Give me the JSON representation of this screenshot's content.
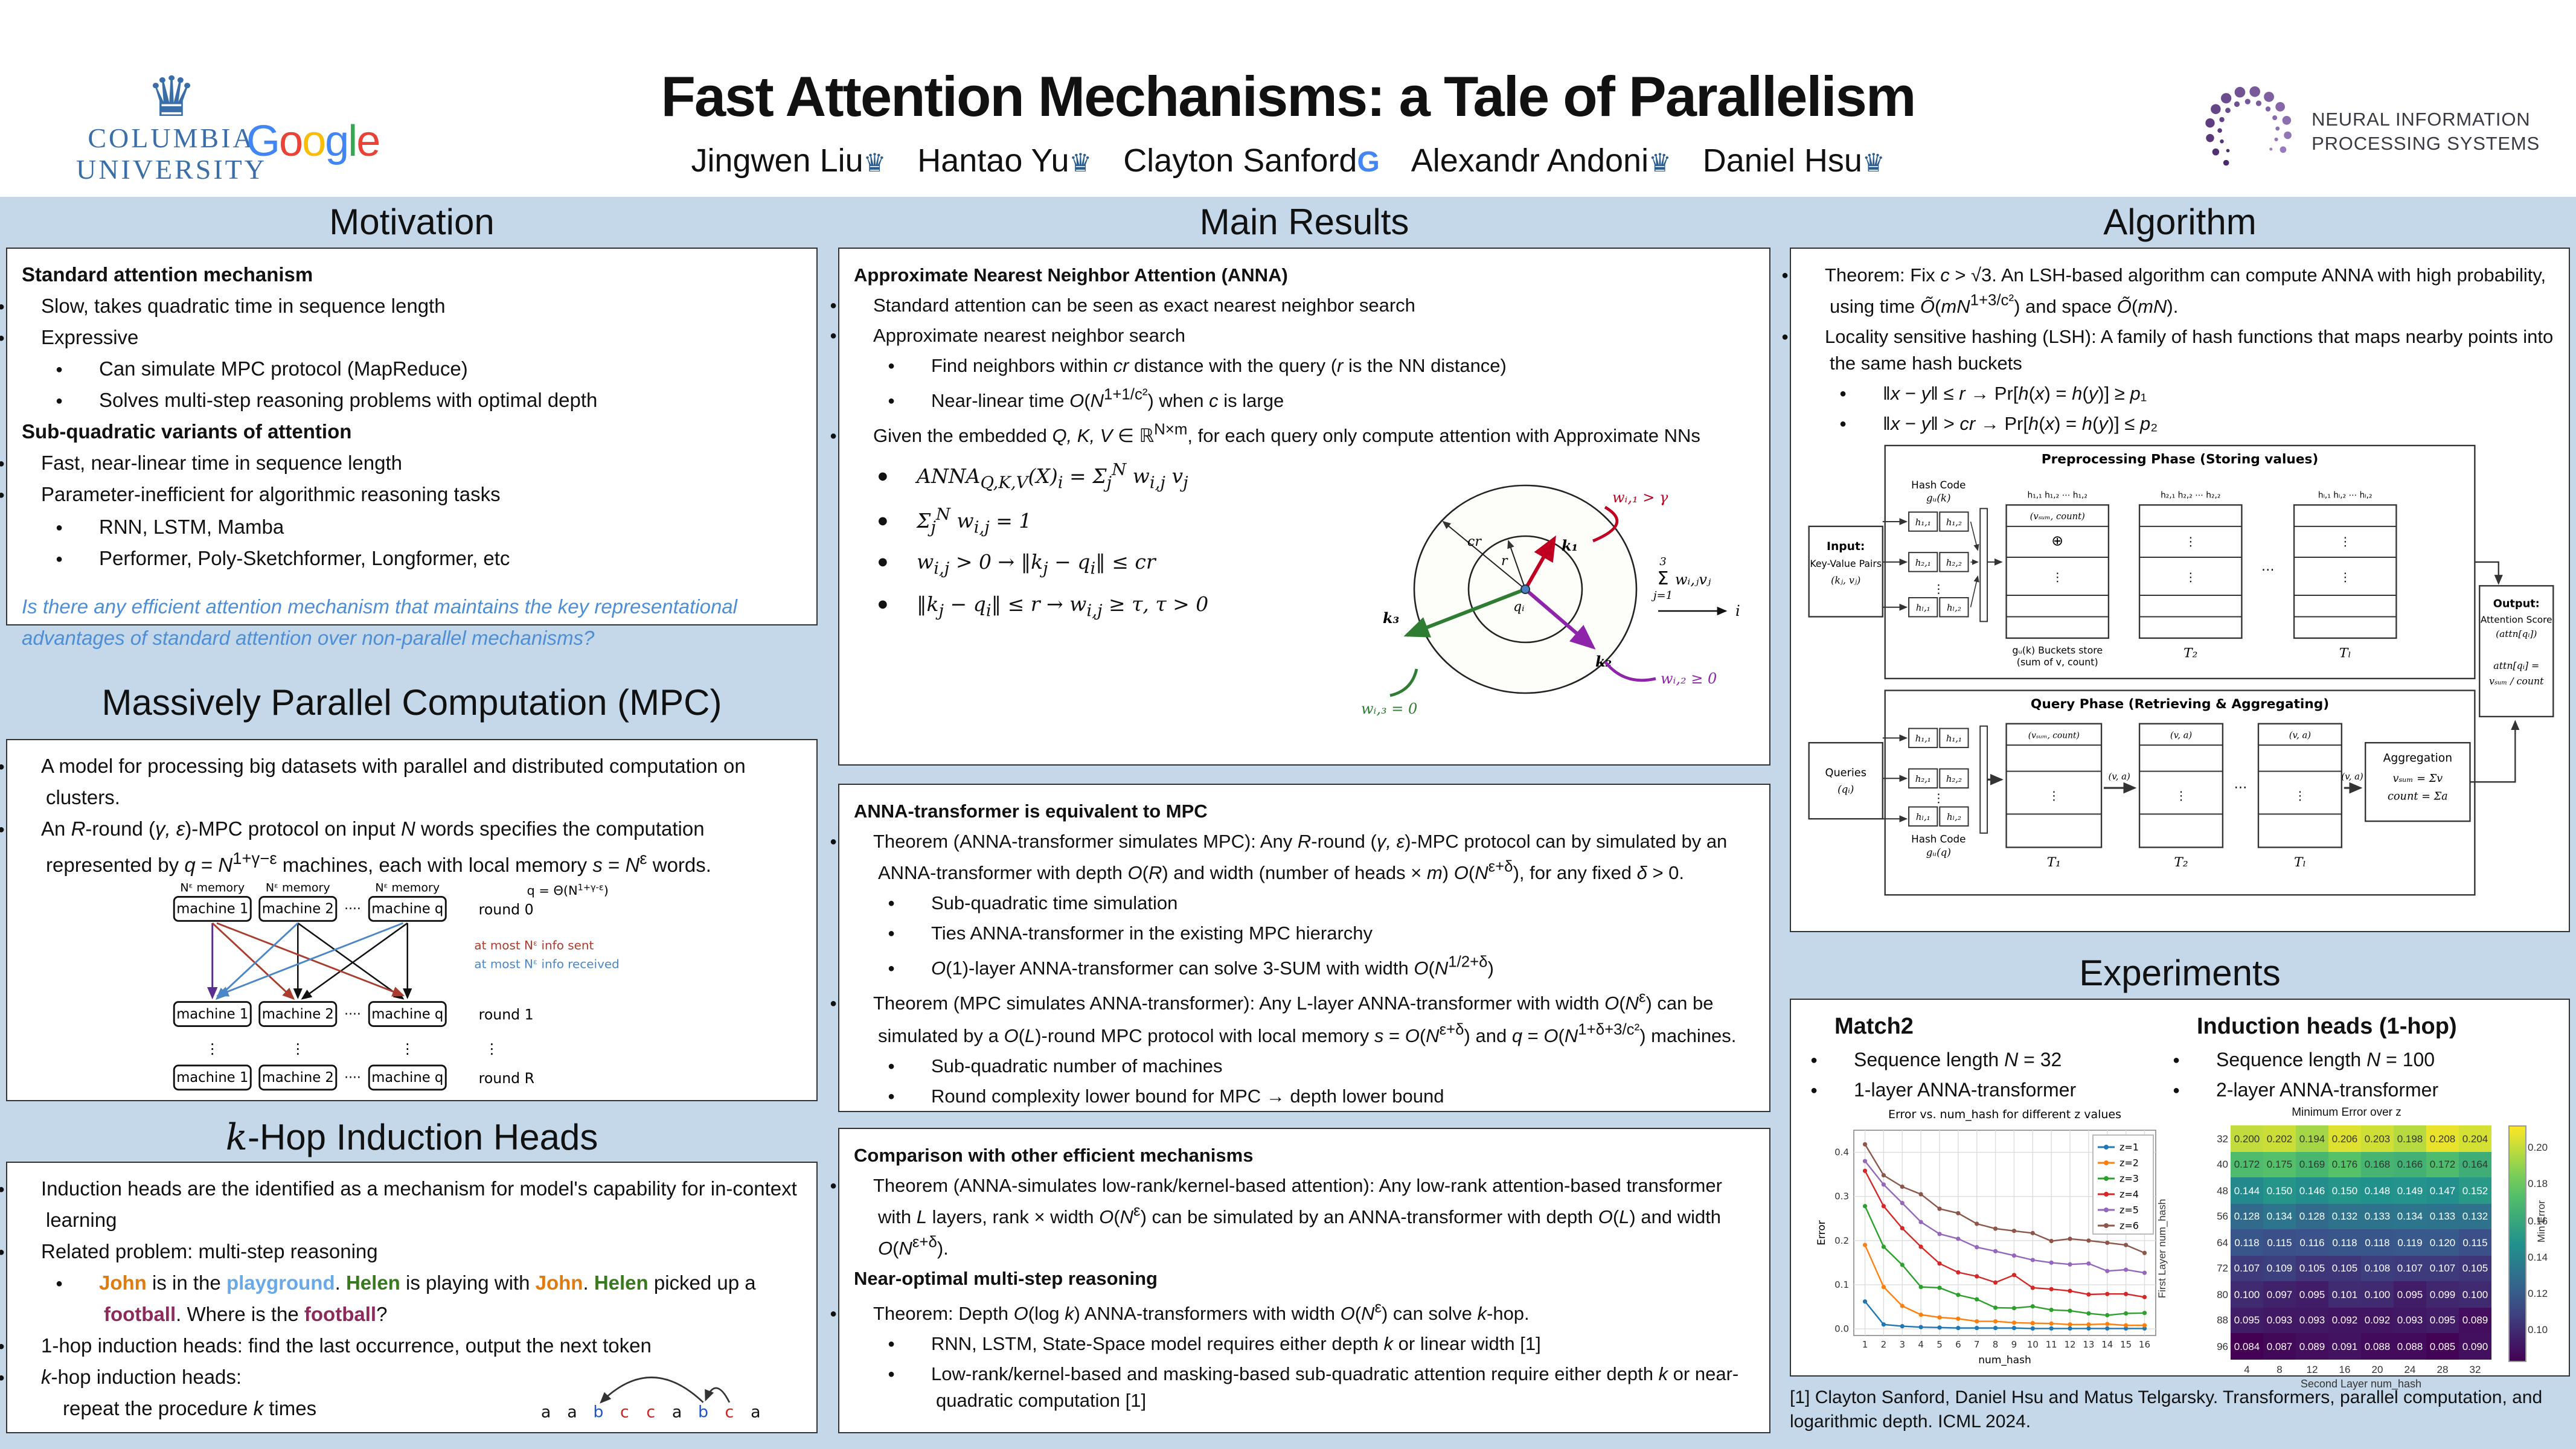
{
  "header": {
    "title": "Fast Attention Mechanisms: a Tale of Parallelism",
    "authors": [
      {
        "name": "Jingwen Liu",
        "affiliation": "columbia"
      },
      {
        "name": "Hantao Yu",
        "affiliation": "columbia"
      },
      {
        "name": "Clayton Sanford",
        "affiliation": "google"
      },
      {
        "name": "Alexandr Andoni",
        "affiliation": "columbia"
      },
      {
        "name": "Daniel Hsu",
        "affiliation": "columbia"
      }
    ],
    "columbia_logo": {
      "line1": "COLUMBIA",
      "line2": "UNIVERSITY"
    },
    "google_logo": {
      "letters": [
        "G",
        "o",
        "o",
        "g",
        "l",
        "e"
      ],
      "colors": [
        "#4285F4",
        "#EA4335",
        "#FBBC05",
        "#4285F4",
        "#34A853",
        "#EA4335"
      ]
    },
    "neurips_logo": {
      "line1": "NEURAL INFORMATION",
      "line2": "PROCESSING SYSTEMS"
    }
  },
  "motivation": {
    "title": "Motivation",
    "items": [
      {
        "k": "h",
        "t": "Standard attention mechanism"
      },
      {
        "k": "b1",
        "t": "Slow, takes quadratic time in sequence length"
      },
      {
        "k": "b1",
        "t": "Expressive"
      },
      {
        "k": "b2",
        "t": "Can simulate MPC protocol (MapReduce)"
      },
      {
        "k": "b2",
        "t": "Solves multi-step reasoning problems with optimal depth"
      },
      {
        "k": "h",
        "t": "Sub-quadratic variants of attention"
      },
      {
        "k": "b1",
        "t": "Fast, near-linear time in sequence length"
      },
      {
        "k": "b1",
        "t": "Parameter-inefficient for algorithmic reasoning tasks"
      },
      {
        "k": "b2",
        "t": "RNN, LSTM, Mamba"
      },
      {
        "k": "b2",
        "t": "Performer, Poly-Sketchformer, Longformer, etc"
      },
      {
        "k": "q",
        "t": "Is there any efficient attention mechanism that maintains the key representational advantages of standard attention over non-parallel mechanisms?"
      }
    ]
  },
  "mpc": {
    "title": "Massively Parallel Computation (MPC)",
    "items": [
      {
        "k": "b1",
        "t": "A model for processing big datasets with parallel and distributed computation on clusters."
      },
      {
        "k": "b1",
        "html": true,
        "t": "An <i>R</i>-round (<i>γ, ε</i>)-MPC protocol on input <i>N</i> words specifies the computation represented by <i>q</i> = <i>N</i><sup>1+γ−ε</sup> machines, each with local memory <i>s</i> = <i>N</i><sup>ε</sup> words."
      }
    ],
    "diagram": {
      "memory_label": "Nᵋ memory",
      "q_base": "q = Θ(N",
      "q_sup": "1+γ-ε",
      "q_close": ")",
      "machines": [
        "machine 1",
        "machine 2",
        "machine q"
      ],
      "rounds": [
        "round 0",
        "round 1",
        "round R"
      ],
      "dots": "····",
      "sent_note": "at most Nᵋ info sent",
      "received_note": "at most Nᵋ info received",
      "sent_color": "#a93c2e",
      "received_color": "#4a86c8"
    }
  },
  "khop": {
    "title": "k-Hop Induction Heads",
    "items": [
      {
        "k": "b1",
        "t": "Induction heads are the identified as a mechanism for model's capability for in-context learning"
      },
      {
        "k": "b1",
        "t": "Related problem: multi-step reasoning"
      },
      {
        "k": "b2",
        "segs": [
          {
            "t": "John",
            "c": "#e07b10"
          },
          {
            "t": " is in the ",
            "c": ""
          },
          {
            "t": "playground",
            "c": "#6aa9e8"
          },
          {
            "t": ". ",
            "c": ""
          },
          {
            "t": "Helen",
            "c": "#3a7a1e"
          },
          {
            "t": " is playing with ",
            "c": ""
          },
          {
            "t": "John",
            "c": "#e07b10"
          },
          {
            "t": ". ",
            "c": ""
          },
          {
            "t": "Helen",
            "c": "#3a7a1e"
          },
          {
            "t": " picked up a ",
            "c": ""
          },
          {
            "t": "football",
            "c": "#8c2a5a"
          },
          {
            "t": ". Where is the ",
            "c": ""
          },
          {
            "t": "football",
            "c": "#8c2a5a"
          },
          {
            "t": "?",
            "c": ""
          }
        ]
      },
      {
        "k": "b1",
        "t": "1-hop induction heads: find the last occurrence, output the next token"
      },
      {
        "k": "b1",
        "html": true,
        "t": "<i>k</i>-hop induction heads:"
      },
      {
        "k": "p",
        "html": true,
        "t": "repeat the procedure <i>k</i> times"
      }
    ],
    "sequence": [
      {
        "t": "a",
        "c": "#111111"
      },
      {
        "t": "a",
        "c": "#111111"
      },
      {
        "t": "b",
        "c": "#2255cc"
      },
      {
        "t": "c",
        "c": "#cc2222"
      },
      {
        "t": "c",
        "c": "#cc2222"
      },
      {
        "t": "a",
        "c": "#111111"
      },
      {
        "t": "b",
        "c": "#2255cc"
      },
      {
        "t": "c",
        "c": "#cc2222"
      },
      {
        "t": "a",
        "c": "#111111"
      }
    ]
  },
  "main_results": {
    "title": "Main Results",
    "anna_items": [
      {
        "k": "h",
        "t": "Approximate Nearest Neighbor Attention (ANNA)"
      },
      {
        "k": "b1",
        "t": "Standard attention can be seen as exact nearest neighbor search"
      },
      {
        "k": "b1",
        "t": "Approximate nearest neighbor search"
      },
      {
        "k": "b2",
        "html": true,
        "t": "Find neighbors within <i>cr</i> distance with the query (<i>r</i> is the NN distance)"
      },
      {
        "k": "b2",
        "html": true,
        "t": "Near-linear time <i>O</i>(<i>N</i><sup>1+1/c²</sup>) when <i>c</i> is large"
      },
      {
        "k": "b1",
        "html": true,
        "t": "Given the embedded <i>Q, K, V</i> ∈ ℝ<sup>N×m</sup>, for each query only compute attention with Approximate NNs"
      }
    ],
    "formulas": [
      "ANNA<sub>Q,K,V</sub>(X)<sub>i</sub> = Σ<sub>j</sub><sup>N</sup> w<sub>i,j</sub> v<sub>j</sub>",
      "Σ<sub>j</sub><sup>N</sup> w<sub>i,j</sub> = 1",
      "w<sub>i,j</sub> &gt; 0 → ‖k<sub>j</sub> − q<sub>i</sub>‖ ≤ cr",
      "‖k<sub>j</sub> − q<sub>i</sub>‖ ≤ r → w<sub>i,j</sub> ≥ τ, τ &gt; 0"
    ],
    "nn_diagram": {
      "w1": "wᵢ,₁ > γ",
      "w2": "wᵢ,₂ ≥ 0",
      "w3": "wᵢ,₃ = 0",
      "k1": "k₁",
      "k2": "k₂",
      "k3": "k₃",
      "q": "qᵢ",
      "r": "r",
      "cr": "cr",
      "sum_top": "3",
      "sum_sigma": "Σ",
      "sum_bottom": "j=1",
      "sum_body": "wᵢ,ⱼvⱼ",
      "i": "i",
      "w1_color": "#c00020",
      "w2_color": "#8e24aa",
      "w3_color": "#2e7d32"
    },
    "equiv_items": [
      {
        "k": "h",
        "t": "ANNA-transformer is equivalent to MPC"
      },
      {
        "k": "b1",
        "html": true,
        "t": "Theorem (ANNA-transformer simulates MPC): Any <i>R</i>-round (<i>γ, ε</i>)-MPC protocol can by simulated by an ANNA-transformer with depth <i>O</i>(<i>R</i>) and width (number of heads × <i>m</i>) <i>O</i>(<i>N</i><sup>ε+δ</sup>), for any fixed <i>δ</i> &gt; 0."
      },
      {
        "k": "b2",
        "t": "Sub-quadratic time simulation"
      },
      {
        "k": "b2",
        "t": "Ties ANNA-transformer in the existing MPC hierarchy"
      },
      {
        "k": "b2",
        "html": true,
        "t": "<i>O</i>(1)-layer ANNA-transformer can solve 3-SUM with width <i>O</i>(<i>N</i><sup>1/2+δ</sup>)"
      },
      {
        "k": "b1",
        "html": true,
        "t": "Theorem (MPC simulates ANNA-transformer): Any L-layer ANNA-transformer with width <i>O</i>(<i>N</i><sup>ε</sup>) can be simulated by a <i>O</i>(<i>L</i>)-round MPC protocol with local memory <i>s</i> = <i>O</i>(<i>N</i><sup>ε+δ</sup>) and <i>q</i> = <i>O</i>(<i>N</i><sup>1+δ+3/c²</sup>) machines."
      },
      {
        "k": "b2",
        "t": "Sub-quadratic number of machines"
      },
      {
        "k": "b2",
        "t": "Round complexity lower bound for MPC → depth lower bound"
      }
    ],
    "comparison_items": [
      {
        "k": "h",
        "t": "Comparison with other efficient mechanisms"
      },
      {
        "k": "b1",
        "html": true,
        "t": "Theorem (ANNA-simulates low-rank/kernel-based attention): Any low-rank attention-based transformer with <i>L</i> layers, rank × width <i>O</i>(<i>N</i><sup>ε</sup>) can be simulated by an ANNA-transformer with depth <i>O</i>(<i>L</i>) and width <i>O</i>(<i>N</i><sup>ε+δ</sup>)."
      },
      {
        "k": "h2",
        "t": "Near-optimal multi-step reasoning"
      },
      {
        "k": "b1",
        "html": true,
        "t": "Theorem: Depth <i>O</i>(log <i>k</i>) ANNA-transformers with width <i>O</i>(<i>N</i><sup>ε</sup>) can solve <i>k</i>-hop."
      },
      {
        "k": "b2",
        "html": true,
        "t": "RNN, LSTM, State-Space model requires either depth <i>k</i> or linear width [1]"
      },
      {
        "k": "b2",
        "html": true,
        "t": "Low-rank/kernel-based and masking-based sub-quadratic attention require either depth <i>k</i> or near-quadratic computation [1]"
      }
    ]
  },
  "algorithm": {
    "title": "Algorithm",
    "items": [
      {
        "k": "b1",
        "html": true,
        "t": "Theorem: Fix <i>c</i> &gt; √3. An LSH-based algorithm can compute ANNA with high probability, using time <i>Õ</i>(<i>mN</i><sup>1+3/c²</sup>) and space <i>Õ</i>(<i>mN</i>)."
      },
      {
        "k": "b1",
        "t": "Locality sensitive hashing (LSH): A family of hash functions that maps nearby points into the same hash buckets"
      },
      {
        "k": "b2",
        "html": true,
        "t": "‖<i>x</i> − <i>y</i>‖ ≤ <i>r</i> → Pr[<i>h</i>(<i>x</i>) = <i>h</i>(<i>y</i>)] ≥ <i>p</i>₁"
      },
      {
        "k": "b2",
        "html": true,
        "t": "‖<i>x</i> − <i>y</i>‖ &gt; <i>cr</i> → Pr[<i>h</i>(<i>x</i>) = <i>h</i>(<i>y</i>)] ≤ <i>p</i>₂"
      }
    ],
    "lsh": {
      "prep_title": "Preprocessing Phase (Storing values)",
      "query_title": "Query Phase (Retrieving & Aggregating)",
      "input1": "Input:",
      "input2": "Key-Value Pairs",
      "input3": "(kⱼ, vⱼ)",
      "hash_code": "Hash Code",
      "gu_k": "gᵤ(k)",
      "gu_q": "gᵤ(q)",
      "prep_cells": [
        "h₁,₁",
        "h₁,₂",
        "h₂,₁",
        "h₂,₂",
        "hₗ,₁",
        "hₗ,₂"
      ],
      "query_cells": [
        "h₁,₁",
        "h₁,₁",
        "h₂,₁",
        "h₂,₂",
        "hₗ,₁",
        "hₗ,₂"
      ],
      "hdrA": "h₁,₁ h₁,₂ ⋯ h₁,₂",
      "hdrB": "h₂,₁ h₂,₂ ⋯ h₂,₂",
      "hdrC": "hₗ,₁ hₗ,₂ ⋯ hₗ,₂",
      "bucket_hdr": "(vₛᵤₘ, count)",
      "oplus": "⊕",
      "bucket_cap1": "gᵤ(k) Buckets store",
      "bucket_cap2": "(sum of v, count)",
      "t1": "T₁",
      "t2": "T₂",
      "tl": "Tₗ",
      "queries1": "Queries",
      "queries2": "(qᵢ)",
      "va": "(v, a)",
      "dots": "⋯",
      "vdots": "⋮",
      "agg_title": "Aggregation",
      "agg1": "vₛᵤₘ = Σv",
      "agg2": "count = Σa",
      "out1": "Output:",
      "out2": "Attention Score",
      "out3": "(attn[qᵢ])",
      "out4": "attn[qᵢ] =",
      "out5": "vₛᵤₘ / count"
    }
  },
  "experiments": {
    "title": "Experiments",
    "match2": {
      "heading": "Match2",
      "bullets": [
        {
          "html": true,
          "t": "Sequence length <i>N</i> = 32"
        },
        {
          "t": "1-layer ANNA-transformer"
        }
      ]
    },
    "induction": {
      "heading": "Induction heads (1-hop)",
      "bullets": [
        {
          "html": true,
          "t": "Sequence length <i>N</i> = 100"
        },
        {
          "t": "2-layer ANNA-transformer"
        }
      ]
    }
  },
  "chart_data": [
    {
      "type": "line",
      "title": "Error vs. num_hash for different z values",
      "xlabel": "num_hash",
      "ylabel": "Error",
      "x": [
        1,
        2,
        3,
        4,
        5,
        6,
        7,
        8,
        9,
        10,
        11,
        12,
        13,
        14,
        15,
        16
      ],
      "xlim": [
        0.4,
        16.6
      ],
      "ylim": [
        -0.015,
        0.45
      ],
      "yticks": [
        0.0,
        0.1,
        0.2,
        0.3,
        0.4
      ],
      "grid": true,
      "legend_position": "upper right",
      "series": [
        {
          "name": "z=1",
          "color": "#1f77b4",
          "values": [
            0.062,
            0.01,
            0.006,
            0.004,
            0.003,
            0.002,
            0.002,
            0.002,
            0.002,
            0.001,
            0.001,
            0.001,
            0.001,
            0.001,
            0.001,
            0.001
          ]
        },
        {
          "name": "z=2",
          "color": "#ff7f0e",
          "values": [
            0.19,
            0.095,
            0.052,
            0.032,
            0.026,
            0.023,
            0.017,
            0.017,
            0.014,
            0.013,
            0.012,
            0.01,
            0.01,
            0.011,
            0.008,
            0.008
          ]
        },
        {
          "name": "z=3",
          "color": "#2ca02c",
          "values": [
            0.278,
            0.186,
            0.145,
            0.095,
            0.093,
            0.077,
            0.067,
            0.048,
            0.047,
            0.051,
            0.043,
            0.041,
            0.035,
            0.031,
            0.035,
            0.036
          ]
        },
        {
          "name": "z=4",
          "color": "#d62728",
          "values": [
            0.358,
            0.278,
            0.228,
            0.186,
            0.148,
            0.128,
            0.119,
            0.105,
            0.122,
            0.093,
            0.09,
            0.086,
            0.078,
            0.079,
            0.079,
            0.072
          ]
        },
        {
          "name": "z=5",
          "color": "#9467bd",
          "values": [
            0.38,
            0.327,
            0.285,
            0.242,
            0.215,
            0.204,
            0.185,
            0.176,
            0.166,
            0.156,
            0.15,
            0.146,
            0.148,
            0.131,
            0.134,
            0.127
          ]
        },
        {
          "name": "z=6",
          "color": "#8c564b",
          "values": [
            0.418,
            0.348,
            0.322,
            0.305,
            0.272,
            0.262,
            0.238,
            0.227,
            0.222,
            0.217,
            0.199,
            0.204,
            0.2,
            0.195,
            0.19,
            0.172
          ]
        }
      ]
    },
    {
      "type": "heatmap",
      "title": "Minimum Error over z",
      "xlabel": "Second Layer num_hash",
      "ylabel": "First Layer num_hash",
      "colorbar_label": "Min Error",
      "colorbar_ticks": [
        0.2,
        0.18,
        0.16,
        0.14,
        0.12,
        0.1
      ],
      "vmin": 0.084,
      "vmax": 0.212,
      "rows": [
        32,
        40,
        48,
        56,
        64,
        72,
        80,
        88,
        96
      ],
      "cols": [
        4,
        8,
        12,
        16,
        20,
        24,
        28,
        32
      ],
      "values": [
        [
          0.2,
          0.202,
          0.194,
          0.206,
          0.203,
          0.198,
          0.208,
          0.204
        ],
        [
          0.172,
          0.175,
          0.169,
          0.176,
          0.168,
          0.166,
          0.172,
          0.164
        ],
        [
          0.144,
          0.15,
          0.146,
          0.15,
          0.148,
          0.149,
          0.147,
          0.152
        ],
        [
          0.128,
          0.134,
          0.128,
          0.132,
          0.133,
          0.134,
          0.133,
          0.132
        ],
        [
          0.118,
          0.115,
          0.116,
          0.118,
          0.118,
          0.119,
          0.12,
          0.115
        ],
        [
          0.107,
          0.109,
          0.105,
          0.105,
          0.108,
          0.107,
          0.107,
          0.105
        ],
        [
          0.1,
          0.097,
          0.095,
          0.101,
          0.1,
          0.095,
          0.099,
          0.1
        ],
        [
          0.095,
          0.093,
          0.093,
          0.092,
          0.092,
          0.093,
          0.095,
          0.089
        ],
        [
          0.084,
          0.087,
          0.089,
          0.091,
          0.088,
          0.088,
          0.085,
          0.09
        ]
      ]
    }
  ],
  "footnote": "[1] Clayton Sanford, Daniel Hsu and Matus Telgarsky. Transformers, parallel computation, and logarithmic depth. ICML 2024."
}
